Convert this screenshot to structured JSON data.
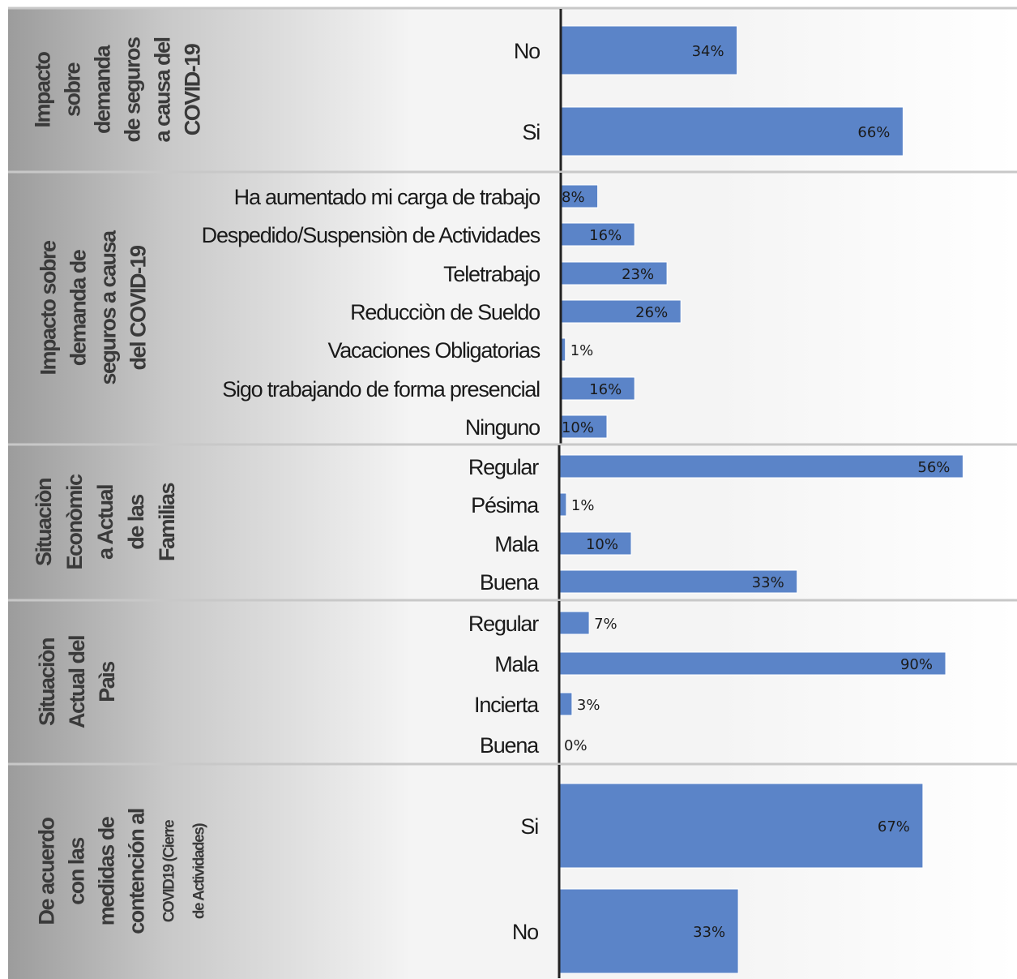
{
  "chart_data": {
    "type": "bar",
    "orientation": "horizontal",
    "bar_color": "#5b84c8",
    "value_unit": "%",
    "panels": [
      {
        "title_lines": [
          "Impacto",
          "sobre",
          "demanda",
          "de seguros",
          "a causa del",
          "COVID-19"
        ],
        "categories": [
          "No",
          "Si"
        ],
        "values": [
          34,
          66
        ],
        "labels": [
          "34%",
          "66%"
        ]
      },
      {
        "title_lines": [
          "Impacto sobre",
          "demanda de",
          "seguros a causa",
          "del COVID-19"
        ],
        "categories": [
          "Ha aumentado mi carga de trabajo",
          "Despedido/Suspensiòn de Actividades",
          "Teletrabajo",
          "Reducciòn de Sueldo",
          "Vacaciones Obligatorias",
          "Sigo trabajando de forma presencial",
          "Ninguno"
        ],
        "values": [
          8,
          16,
          23,
          26,
          1,
          16,
          10
        ],
        "labels": [
          "8%",
          "16%",
          "23%",
          "26%",
          "1%",
          "16%",
          "10%"
        ]
      },
      {
        "title_lines": [
          "Situaciòn",
          "Econòmic",
          "a Actual",
          "de las",
          "Familias"
        ],
        "categories": [
          "Regular",
          "Pésima",
          "Mala",
          "Buena"
        ],
        "values": [
          56,
          1,
          10,
          33
        ],
        "labels": [
          "56%",
          "1%",
          "10%",
          "33%"
        ]
      },
      {
        "title_lines": [
          "Situaciòn",
          "Actual del",
          "Paìs"
        ],
        "categories": [
          "Regular",
          "Mala",
          "Incierta",
          "Buena"
        ],
        "values": [
          7,
          90,
          3,
          0
        ],
        "labels": [
          "7%",
          "90%",
          "3%",
          "0%"
        ]
      },
      {
        "title_lines": [
          "De acuerdo",
          "con las",
          "medidas de",
          "contención al",
          "COVID19 (Cierre",
          "de Actividades)"
        ],
        "categories": [
          "Si",
          "No"
        ],
        "values": [
          67,
          33
        ],
        "labels": [
          "67%",
          "33%"
        ]
      }
    ]
  }
}
